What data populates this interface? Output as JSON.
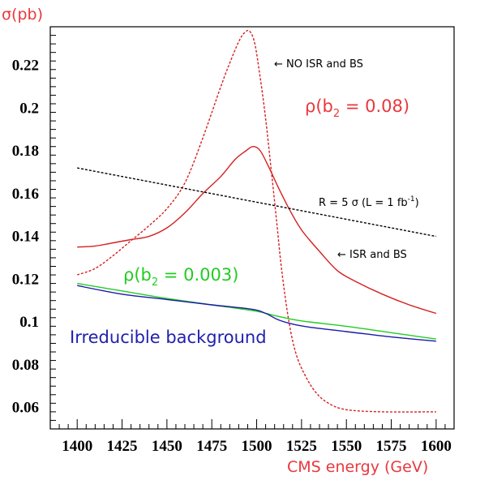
{
  "chart_data": {
    "type": "line",
    "xlabel": "CMS energy (GeV)",
    "ylabel": "σ(pb)",
    "xlim": [
      1385,
      1610
    ],
    "ylim": [
      0.05,
      0.238
    ],
    "x_ticks": [
      1400,
      1425,
      1450,
      1475,
      1500,
      1525,
      1550,
      1575,
      1600
    ],
    "y_ticks": [
      0.06,
      0.08,
      0.1,
      0.12,
      0.14,
      0.16,
      0.18,
      0.2,
      0.22
    ],
    "x_tick_labels": [
      "1400",
      "1425",
      "1450",
      "1475",
      "1500",
      "1525",
      "1550",
      "1575",
      "1600"
    ],
    "y_tick_labels": [
      "0.06",
      "0.08",
      "0.1",
      "0.12",
      "0.14",
      "0.16",
      "0.18",
      "0.2",
      "0.22"
    ],
    "grid": false,
    "series": [
      {
        "color": "#d42020",
        "dash": "dotted",
        "points": [
          [
            1400,
            0.122
          ],
          [
            1410,
            0.125
          ],
          [
            1420,
            0.131
          ],
          [
            1430,
            0.138
          ],
          [
            1440,
            0.145
          ],
          [
            1450,
            0.153
          ],
          [
            1460,
            0.165
          ],
          [
            1470,
            0.186
          ],
          [
            1480,
            0.21
          ],
          [
            1485,
            0.221
          ],
          [
            1490,
            0.231
          ],
          [
            1493,
            0.235
          ],
          [
            1496,
            0.236
          ],
          [
            1499,
            0.23
          ],
          [
            1502,
            0.214
          ],
          [
            1505,
            0.195
          ],
          [
            1508,
            0.172
          ],
          [
            1511,
            0.148
          ],
          [
            1514,
            0.124
          ],
          [
            1518,
            0.1
          ],
          [
            1522,
            0.085
          ],
          [
            1527,
            0.075
          ],
          [
            1533,
            0.067
          ],
          [
            1540,
            0.062
          ],
          [
            1550,
            0.059
          ],
          [
            1570,
            0.058
          ],
          [
            1600,
            0.058
          ]
        ]
      },
      {
        "color": "#d42020",
        "dash": "solid",
        "points": [
          [
            1400,
            0.135
          ],
          [
            1410,
            0.1355
          ],
          [
            1420,
            0.137
          ],
          [
            1430,
            0.1385
          ],
          [
            1440,
            0.14
          ],
          [
            1450,
            0.144
          ],
          [
            1460,
            0.151
          ],
          [
            1470,
            0.16
          ],
          [
            1480,
            0.168
          ],
          [
            1488,
            0.176
          ],
          [
            1494,
            0.18
          ],
          [
            1498,
            0.182
          ],
          [
            1502,
            0.18
          ],
          [
            1507,
            0.172
          ],
          [
            1512,
            0.163
          ],
          [
            1518,
            0.153
          ],
          [
            1525,
            0.143
          ],
          [
            1535,
            0.133
          ],
          [
            1545,
            0.124
          ],
          [
            1555,
            0.119
          ],
          [
            1570,
            0.113
          ],
          [
            1585,
            0.108
          ],
          [
            1600,
            0.104
          ]
        ]
      },
      {
        "color": "#22cc22",
        "dash": "solid",
        "points": [
          [
            1400,
            0.118
          ],
          [
            1425,
            0.1145
          ],
          [
            1450,
            0.111
          ],
          [
            1475,
            0.108
          ],
          [
            1500,
            0.105
          ],
          [
            1510,
            0.103
          ],
          [
            1525,
            0.1005
          ],
          [
            1550,
            0.098
          ],
          [
            1575,
            0.095
          ],
          [
            1600,
            0.092
          ]
        ]
      },
      {
        "color": "#1a1aa8",
        "dash": "solid",
        "points": [
          [
            1400,
            0.117
          ],
          [
            1425,
            0.113
          ],
          [
            1450,
            0.1105
          ],
          [
            1475,
            0.108
          ],
          [
            1497,
            0.106
          ],
          [
            1505,
            0.104
          ],
          [
            1512,
            0.101
          ],
          [
            1520,
            0.099
          ],
          [
            1530,
            0.0975
          ],
          [
            1550,
            0.0955
          ],
          [
            1575,
            0.093
          ],
          [
            1600,
            0.091
          ]
        ]
      },
      {
        "color": "#000000",
        "dash": "dotted",
        "points": [
          [
            1400,
            0.172
          ],
          [
            1600,
            0.14
          ]
        ]
      }
    ],
    "annotations": {
      "no_isr_bs": "← NO ISR and BS",
      "rho_008_pre": "ρ(b",
      "rho_008_sub": "2",
      "rho_008_post": " = 0.08)",
      "r5sigma_pre": "R = 5 σ (L = 1 fb",
      "r5sigma_sup": "-1",
      "r5sigma_post": ")",
      "isr_bs": "← ISR and BS",
      "rho_0003_pre": "ρ(b",
      "rho_0003_sub": "2",
      "rho_0003_post": " = 0.003)",
      "irreducible": "Irreducible background"
    },
    "colors": {
      "red_text": "#e8383d",
      "green_text": "#22cc22",
      "blue_text": "#2020b0"
    }
  }
}
